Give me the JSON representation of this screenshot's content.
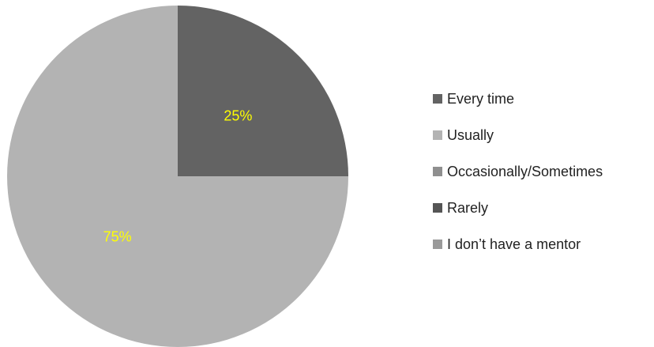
{
  "chart_data": {
    "type": "pie",
    "title": "",
    "categories": [
      "Every time",
      "Usually",
      "Occasionally/Sometimes",
      "Rarely",
      "I don’t have a mentor"
    ],
    "values": [
      25,
      75,
      0,
      0,
      0
    ],
    "data_labels": [
      "25%",
      "75%",
      "",
      "",
      ""
    ],
    "colors": [
      "#636363",
      "#b3b3b3",
      "#8f8f8f",
      "#555555",
      "#9a9a9a"
    ],
    "label_color": "#ffff00",
    "legend_position": "right"
  }
}
